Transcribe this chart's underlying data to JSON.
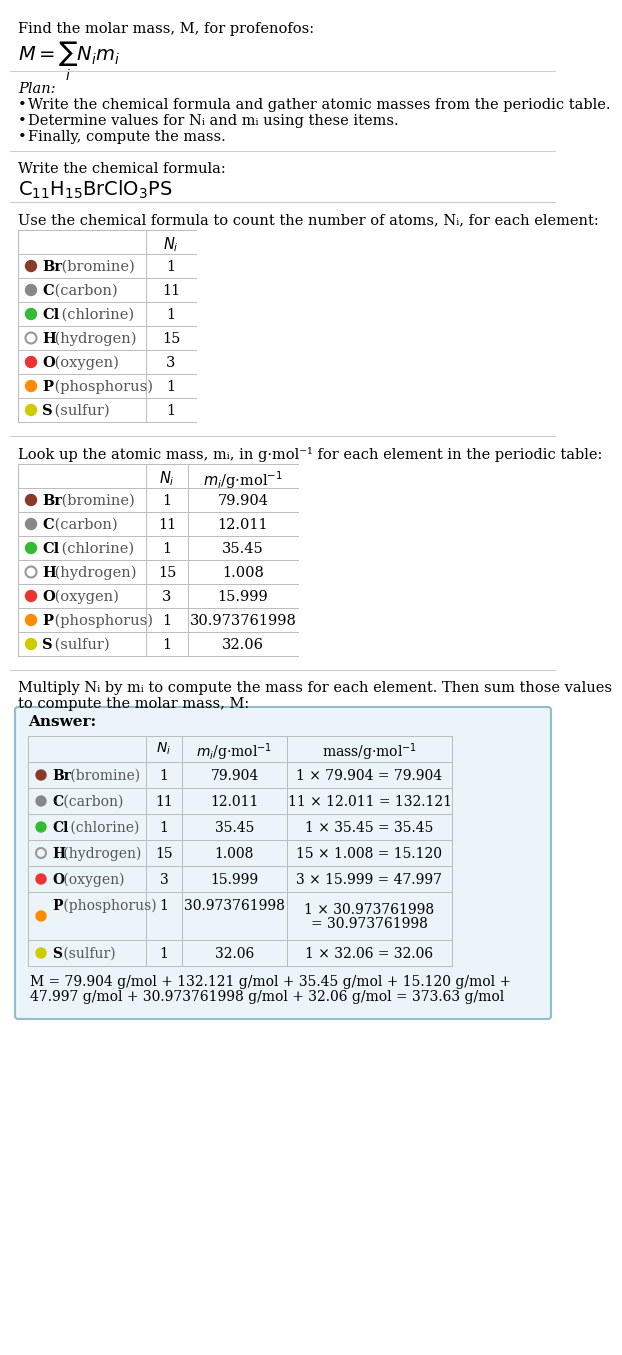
{
  "title_line": "Find the molar mass, M, for profenofos:",
  "plan_header": "Plan:",
  "plan_bullets": [
    "Write the chemical formula and gather atomic masses from the periodic table.",
    "Determine values for Nᵢ and mᵢ using these items.",
    "Finally, compute the mass."
  ],
  "formula_section_header": "Write the chemical formula:",
  "table1_header": "Use the chemical formula to count the number of atoms, Nᵢ, for each element:",
  "table2_header_line1": "Look up the atomic mass, mᵢ, in g·mol⁻¹ for each element in the periodic table:",
  "table3_header_line1": "Multiply Nᵢ by mᵢ to compute the mass for each element. Then sum those values",
  "table3_header_line2": "to compute the molar mass, M:",
  "elements": [
    "Br (bromine)",
    "C (carbon)",
    "Cl (chlorine)",
    "H (hydrogen)",
    "O (oxygen)",
    "P (phosphorus)",
    "S (sulfur)"
  ],
  "element_short": [
    "Br",
    "C",
    "Cl",
    "H",
    "O",
    "P",
    "S"
  ],
  "element_colors": [
    "#8B3A2A",
    "#888888",
    "#33BB33",
    "#FFFFFF",
    "#EE3333",
    "#FF8C00",
    "#CCCC00"
  ],
  "element_circle_fill": [
    true,
    true,
    true,
    false,
    true,
    true,
    true
  ],
  "element_circle_edge": [
    "#8B3A2A",
    "#888888",
    "#33BB33",
    "#999999",
    "#EE3333",
    "#FF8C00",
    "#BBBB00"
  ],
  "Ni": [
    1,
    11,
    1,
    15,
    3,
    1,
    1
  ],
  "mi": [
    "79.904",
    "12.011",
    "35.45",
    "1.008",
    "15.999",
    "30.973761998",
    "32.06"
  ],
  "mass_calc": [
    "1 × 79.904 = 79.904",
    "11 × 12.011 = 132.121",
    "1 × 35.45 = 35.45",
    "15 × 1.008 = 15.120",
    "3 × 15.999 = 47.997",
    "1 × 30.973761998\n= 30.973761998",
    "1 × 32.06 = 32.06"
  ],
  "final_sum_line1": "M = 79.904 g/mol + 132.121 g/mol + 35.45 g/mol + 15.120 g/mol +",
  "final_sum_line2": "47.997 g/mol + 30.973761998 g/mol + 32.06 g/mol = 373.63 g/mol",
  "answer_box_color": "#EBF5F9",
  "answer_box_edge": "#90BDD0",
  "bg_color": "#FFFFFF",
  "sep_color": "#CCCCCC",
  "table_line_color": "#BBBBBB"
}
